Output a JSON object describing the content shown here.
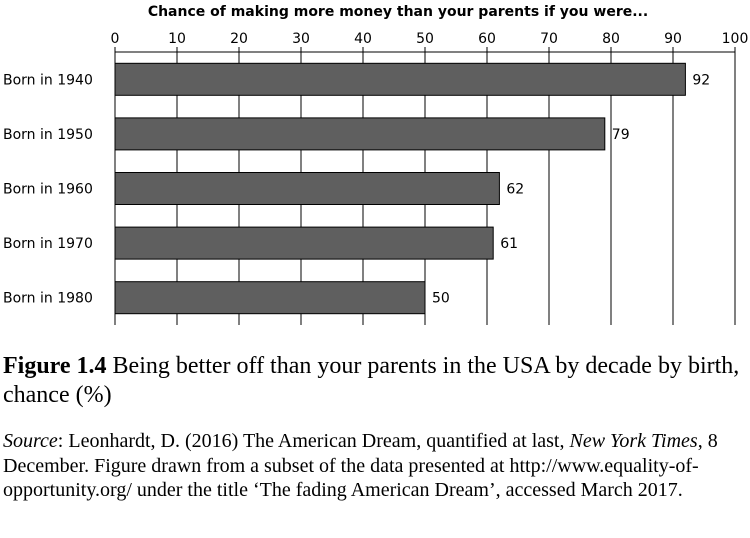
{
  "chart_data": {
    "type": "bar",
    "orientation": "horizontal",
    "title": "Chance of making more money than your parents if you were...",
    "categories": [
      "Born in 1940",
      "Born in 1950",
      "Born in 1960",
      "Born in 1970",
      "Born in 1980"
    ],
    "values": [
      92,
      79,
      62,
      61,
      50
    ],
    "xlim": [
      0,
      100
    ],
    "xticks": [
      0,
      10,
      20,
      30,
      40,
      50,
      60,
      70,
      80,
      90,
      100
    ],
    "axis_position": "top",
    "grid": true,
    "bar_color": "#5f5f5f",
    "data_labels": true
  },
  "caption": {
    "label": "Figure 1.4",
    "text": " Being better off than your parents in the USA by decade by birth, chance (%)"
  },
  "source": {
    "label": "Source",
    "part1": ": Leonhardt, D. (2016) The American Dream, quantified at last, ",
    "publication": "New York Times",
    "part2": ", 8 December. Figure drawn from a subset of the data presented at http://www.equality-of-opportunity.org/ under the title ‘The fading American Dream’, accessed March 2017."
  }
}
